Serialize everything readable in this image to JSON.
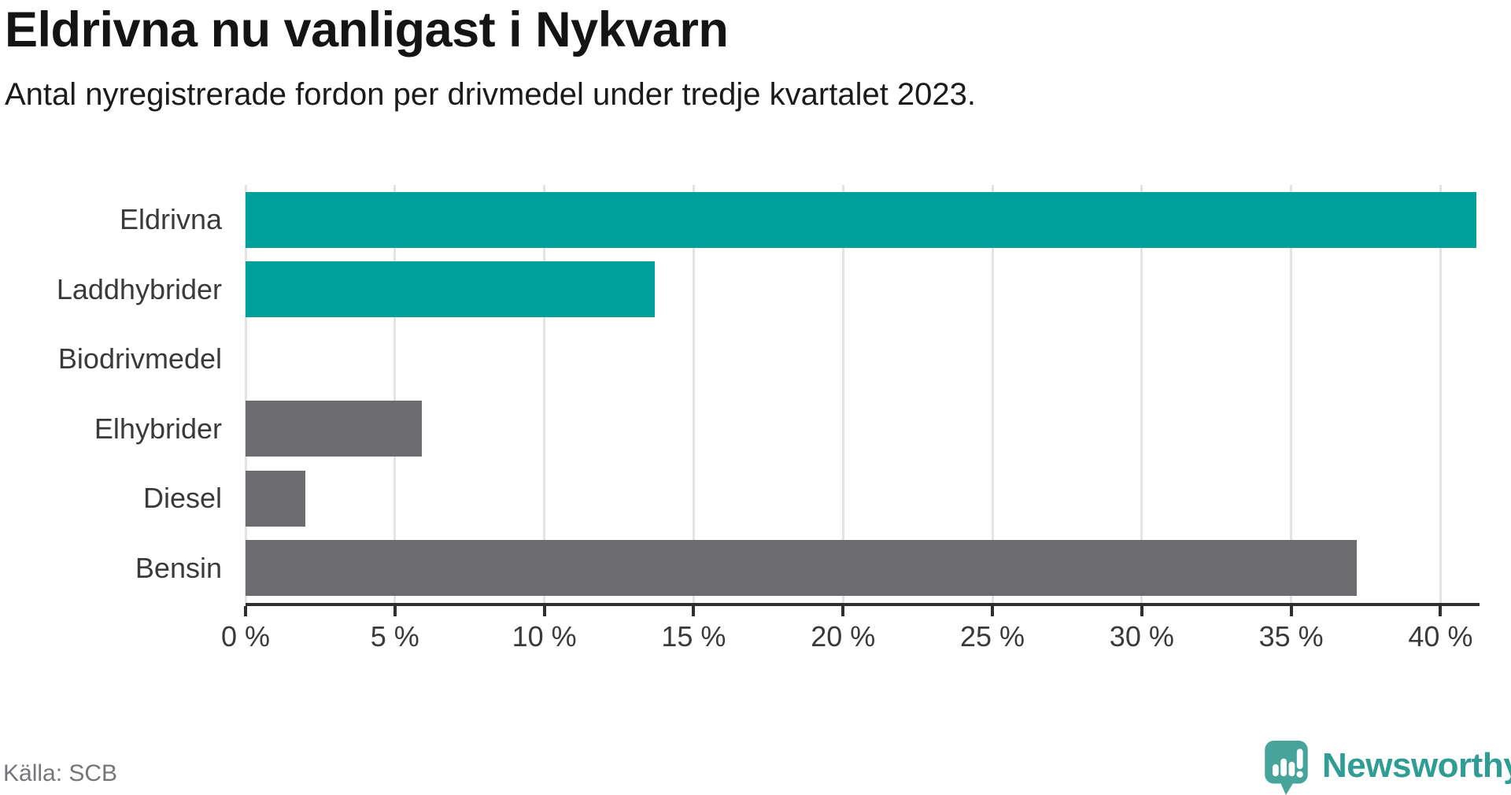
{
  "header": {
    "title": "Eldrivna nu vanligast i Nykvarn",
    "subtitle": "Antal nyregistrerade fordon per drivmedel under tredje kvartalet 2023."
  },
  "chart_data": {
    "type": "bar",
    "orientation": "horizontal",
    "title": "Eldrivna nu vanligast i Nykvarn",
    "subtitle": "Antal nyregistrerade fordon per drivmedel under tredje kvartalet 2023.",
    "categories": [
      "Eldrivna",
      "Laddhybrider",
      "Biodrivmedel",
      "Elhybrider",
      "Diesel",
      "Bensin"
    ],
    "values": [
      41.2,
      13.7,
      0,
      5.9,
      2.0,
      37.2
    ],
    "unit": "%",
    "bar_colors": [
      "#00a19b",
      "#00a19b",
      "#6b6b70",
      "#6b6b70",
      "#6b6b70",
      "#6b6b70"
    ],
    "x_ticks": [
      0,
      5,
      10,
      15,
      20,
      25,
      30,
      35,
      40
    ],
    "x_tick_labels": [
      "0 %",
      "5 %",
      "10 %",
      "15 %",
      "20 %",
      "25 %",
      "30 %",
      "35 %",
      "40 %"
    ],
    "xlim": [
      0,
      41.2
    ],
    "grid": true,
    "gridline_color": "#e3e3e3",
    "axis_color": "#2f2f2f",
    "legend": "none"
  },
  "footer": {
    "source": "Källa: SCB"
  },
  "logo": {
    "name": "Newsworthy",
    "icon_color": "#46a49b",
    "text_color": "#2f9d93"
  }
}
